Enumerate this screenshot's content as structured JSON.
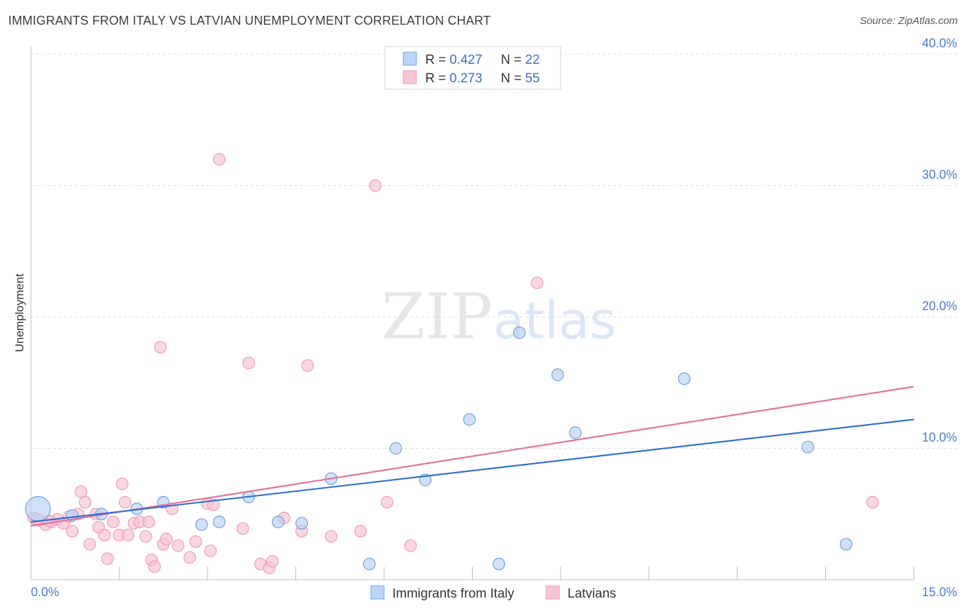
{
  "header": {
    "title": "IMMIGRANTS FROM ITALY VS LATVIAN UNEMPLOYMENT CORRELATION CHART",
    "source": "Source: ZipAtlas.com"
  },
  "watermark": {
    "zip": "ZIP",
    "atlas": "atlas"
  },
  "colors": {
    "blue_fill": "#bcd4f7",
    "blue_stroke": "#6f9ee0",
    "blue_line": "#2f6fd1",
    "pink_fill": "#f9c4d4",
    "pink_stroke": "#ef9ab5",
    "pink_line": "#e66e99",
    "tick": "#4a7cc9",
    "grid": "#dddddd"
  },
  "legend": {
    "entries": [
      {
        "r_label": "R = ",
        "r_value": "0.427",
        "n_label": "N = ",
        "n_value": "22",
        "series": "blue"
      },
      {
        "r_label": "R = ",
        "r_value": "0.273",
        "n_label": "N = ",
        "n_value": "55",
        "series": "pink"
      }
    ]
  },
  "chart_data": {
    "type": "scatter",
    "title": "IMMIGRANTS FROM ITALY VS LATVIAN UNEMPLOYMENT CORRELATION CHART",
    "xlabel": "",
    "ylabel": "Unemployment",
    "xlim": [
      0,
      15
    ],
    "ylim": [
      0,
      40
    ],
    "x_tick_labels": [
      "0.0%",
      "15.0%"
    ],
    "y_ticks": [
      10,
      20,
      30,
      40
    ],
    "y_tick_labels": [
      "10.0%",
      "20.0%",
      "30.0%",
      "40.0%"
    ],
    "grid": true,
    "legend_position": "top-center",
    "series": [
      {
        "name": "Immigrants from Italy",
        "color": "blue",
        "trend": {
          "x": [
            0,
            15
          ],
          "y": [
            4.4,
            12.2
          ]
        },
        "points": [
          {
            "x": 0.12,
            "y": 5.4,
            "big": true
          },
          {
            "x": 0.7,
            "y": 4.9
          },
          {
            "x": 1.2,
            "y": 5.0
          },
          {
            "x": 1.8,
            "y": 5.4
          },
          {
            "x": 2.25,
            "y": 5.9
          },
          {
            "x": 2.9,
            "y": 4.2
          },
          {
            "x": 3.2,
            "y": 4.4
          },
          {
            "x": 3.7,
            "y": 6.3
          },
          {
            "x": 4.2,
            "y": 4.4
          },
          {
            "x": 4.6,
            "y": 4.3
          },
          {
            "x": 5.1,
            "y": 7.7
          },
          {
            "x": 5.75,
            "y": 1.2
          },
          {
            "x": 6.2,
            "y": 10.0
          },
          {
            "x": 6.7,
            "y": 7.6
          },
          {
            "x": 7.45,
            "y": 12.2
          },
          {
            "x": 7.95,
            "y": 1.2
          },
          {
            "x": 8.3,
            "y": 18.8
          },
          {
            "x": 8.95,
            "y": 15.6
          },
          {
            "x": 9.25,
            "y": 11.2
          },
          {
            "x": 11.1,
            "y": 15.3
          },
          {
            "x": 13.2,
            "y": 10.1
          },
          {
            "x": 13.85,
            "y": 2.7
          }
        ]
      },
      {
        "name": "Latvians",
        "color": "pink",
        "trend": {
          "x": [
            0,
            15
          ],
          "y": [
            4.1,
            14.7
          ]
        },
        "points": [
          {
            "x": 0.05,
            "y": 4.7
          },
          {
            "x": 0.15,
            "y": 4.5
          },
          {
            "x": 0.25,
            "y": 4.2
          },
          {
            "x": 0.35,
            "y": 4.4
          },
          {
            "x": 0.45,
            "y": 4.6
          },
          {
            "x": 0.55,
            "y": 4.3
          },
          {
            "x": 0.65,
            "y": 4.8
          },
          {
            "x": 0.8,
            "y": 5.0
          },
          {
            "x": 0.7,
            "y": 3.7
          },
          {
            "x": 0.85,
            "y": 6.7
          },
          {
            "x": 0.92,
            "y": 5.9
          },
          {
            "x": 1.0,
            "y": 2.7
          },
          {
            "x": 1.1,
            "y": 5.0
          },
          {
            "x": 1.15,
            "y": 4.0
          },
          {
            "x": 1.25,
            "y": 3.4
          },
          {
            "x": 1.3,
            "y": 1.6
          },
          {
            "x": 1.4,
            "y": 4.4
          },
          {
            "x": 1.5,
            "y": 3.4
          },
          {
            "x": 1.55,
            "y": 7.3
          },
          {
            "x": 1.6,
            "y": 5.9
          },
          {
            "x": 1.65,
            "y": 3.4
          },
          {
            "x": 1.75,
            "y": 4.3
          },
          {
            "x": 1.85,
            "y": 4.4
          },
          {
            "x": 1.95,
            "y": 3.3
          },
          {
            "x": 2.0,
            "y": 4.4
          },
          {
            "x": 2.05,
            "y": 1.5
          },
          {
            "x": 2.1,
            "y": 1.0
          },
          {
            "x": 2.2,
            "y": 17.7
          },
          {
            "x": 2.25,
            "y": 2.7
          },
          {
            "x": 2.3,
            "y": 3.1
          },
          {
            "x": 2.4,
            "y": 5.4
          },
          {
            "x": 2.5,
            "y": 2.6
          },
          {
            "x": 2.7,
            "y": 1.7
          },
          {
            "x": 2.8,
            "y": 2.9
          },
          {
            "x": 3.0,
            "y": 5.8
          },
          {
            "x": 3.05,
            "y": 2.2
          },
          {
            "x": 3.1,
            "y": 5.7
          },
          {
            "x": 3.2,
            "y": 32.0
          },
          {
            "x": 3.6,
            "y": 3.9
          },
          {
            "x": 3.7,
            "y": 16.5
          },
          {
            "x": 3.9,
            "y": 1.2
          },
          {
            "x": 4.05,
            "y": 0.9
          },
          {
            "x": 4.1,
            "y": 1.4
          },
          {
            "x": 4.3,
            "y": 4.7
          },
          {
            "x": 4.6,
            "y": 3.7
          },
          {
            "x": 4.7,
            "y": 16.3
          },
          {
            "x": 5.1,
            "y": 3.3
          },
          {
            "x": 5.6,
            "y": 3.7
          },
          {
            "x": 5.85,
            "y": 30.0
          },
          {
            "x": 6.05,
            "y": 5.9
          },
          {
            "x": 6.45,
            "y": 2.6
          },
          {
            "x": 8.6,
            "y": 22.6
          },
          {
            "x": 14.3,
            "y": 5.9
          },
          {
            "x": 0.1,
            "y": 4.6
          },
          {
            "x": 0.3,
            "y": 4.5
          }
        ]
      }
    ]
  }
}
